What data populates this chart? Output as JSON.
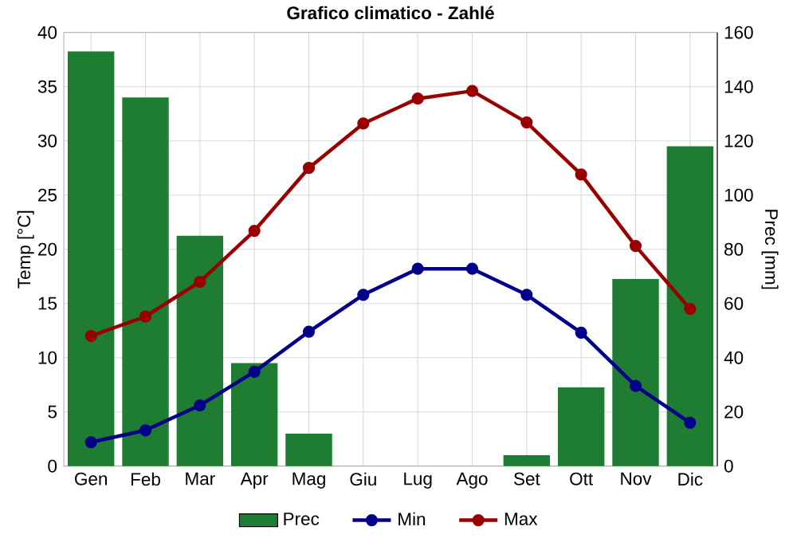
{
  "chart_data": {
    "type": "bar",
    "title": "Grafico climatico - Zahlé",
    "ylabel": "Temp [°C]",
    "y2label": "Prec [mm]",
    "categories": [
      "Gen",
      "Feb",
      "Mar",
      "Apr",
      "Mag",
      "Giu",
      "Lug",
      "Ago",
      "Set",
      "Ott",
      "Nov",
      "Dic"
    ],
    "series": [
      {
        "name": "Prec",
        "axis": "y2",
        "color": "#1e7d32",
        "values": [
          153,
          136,
          85,
          38,
          12,
          0,
          0,
          0,
          4,
          29,
          69,
          118
        ]
      },
      {
        "name": "Min",
        "type": "line",
        "color": "#00008b",
        "values": [
          2.2,
          3.3,
          5.6,
          8.7,
          12.4,
          15.8,
          18.2,
          18.2,
          15.8,
          12.3,
          7.4,
          4.0
        ]
      },
      {
        "name": "Max",
        "type": "line",
        "color": "#990000",
        "values": [
          12.0,
          13.8,
          17.0,
          21.7,
          27.5,
          31.6,
          33.9,
          34.6,
          31.7,
          26.9,
          20.3,
          14.5
        ]
      }
    ],
    "ylim": [
      0,
      40
    ],
    "yticks": [
      0,
      5,
      10,
      15,
      20,
      25,
      30,
      35,
      40
    ],
    "y2lim": [
      0,
      160
    ],
    "y2ticks": [
      0,
      20,
      40,
      60,
      80,
      100,
      120,
      140,
      160
    ],
    "grid": true,
    "legend": "bottom",
    "marker": "circle",
    "line_style": "solid"
  }
}
